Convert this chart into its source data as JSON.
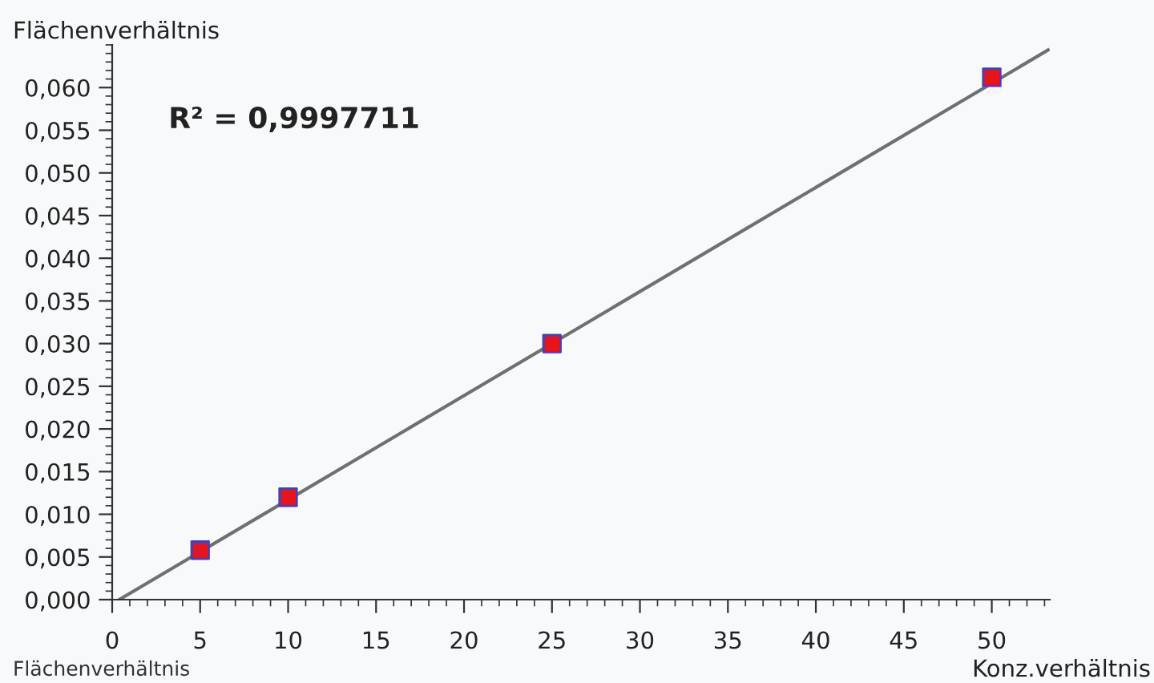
{
  "chart_data": {
    "type": "scatter",
    "ylabel": "Flächenverhältnis",
    "xlabel": "Konz.verhältnis",
    "annotations": [
      "R² = 0,9997711",
      "Flächenverhältnis"
    ],
    "x": [
      5,
      10,
      25,
      50
    ],
    "series": [
      {
        "color": "#e8141c",
        "values": [
          0.0058,
          0.012,
          0.03,
          0.0612
        ],
        "marker": "square"
      },
      {
        "type": "line",
        "color": "#707070",
        "x": [
          0.4,
          53.2
        ],
        "values": [
          0,
          0.0644
        ],
        "marker": "none",
        "line_style": "solid"
      }
    ],
    "xlim": [
      0,
      53.3
    ],
    "ylim": [
      0,
      0.065
    ],
    "xticks": [
      0,
      5,
      10,
      15,
      20,
      25,
      30,
      35,
      40,
      45,
      50
    ],
    "yticks": [
      {
        "value": 0,
        "label": "0,000"
      },
      {
        "value": 0.005,
        "label": "0,005"
      },
      {
        "value": 0.01,
        "label": "0,010"
      },
      {
        "value": 0.015,
        "label": "0,015"
      },
      {
        "value": 0.02,
        "label": "0,020"
      },
      {
        "value": 0.025,
        "label": "0,025"
      },
      {
        "value": 0.03,
        "label": "0,030"
      },
      {
        "value": 0.035,
        "label": "0,035"
      },
      {
        "value": 0.04,
        "label": "0,040"
      },
      {
        "value": 0.045,
        "label": "0,045"
      },
      {
        "value": 0.05,
        "label": "0,050"
      },
      {
        "value": 0.055,
        "label": "0,055"
      },
      {
        "value": 0.06,
        "label": "0,060"
      }
    ],
    "grid": false,
    "legend": false
  }
}
